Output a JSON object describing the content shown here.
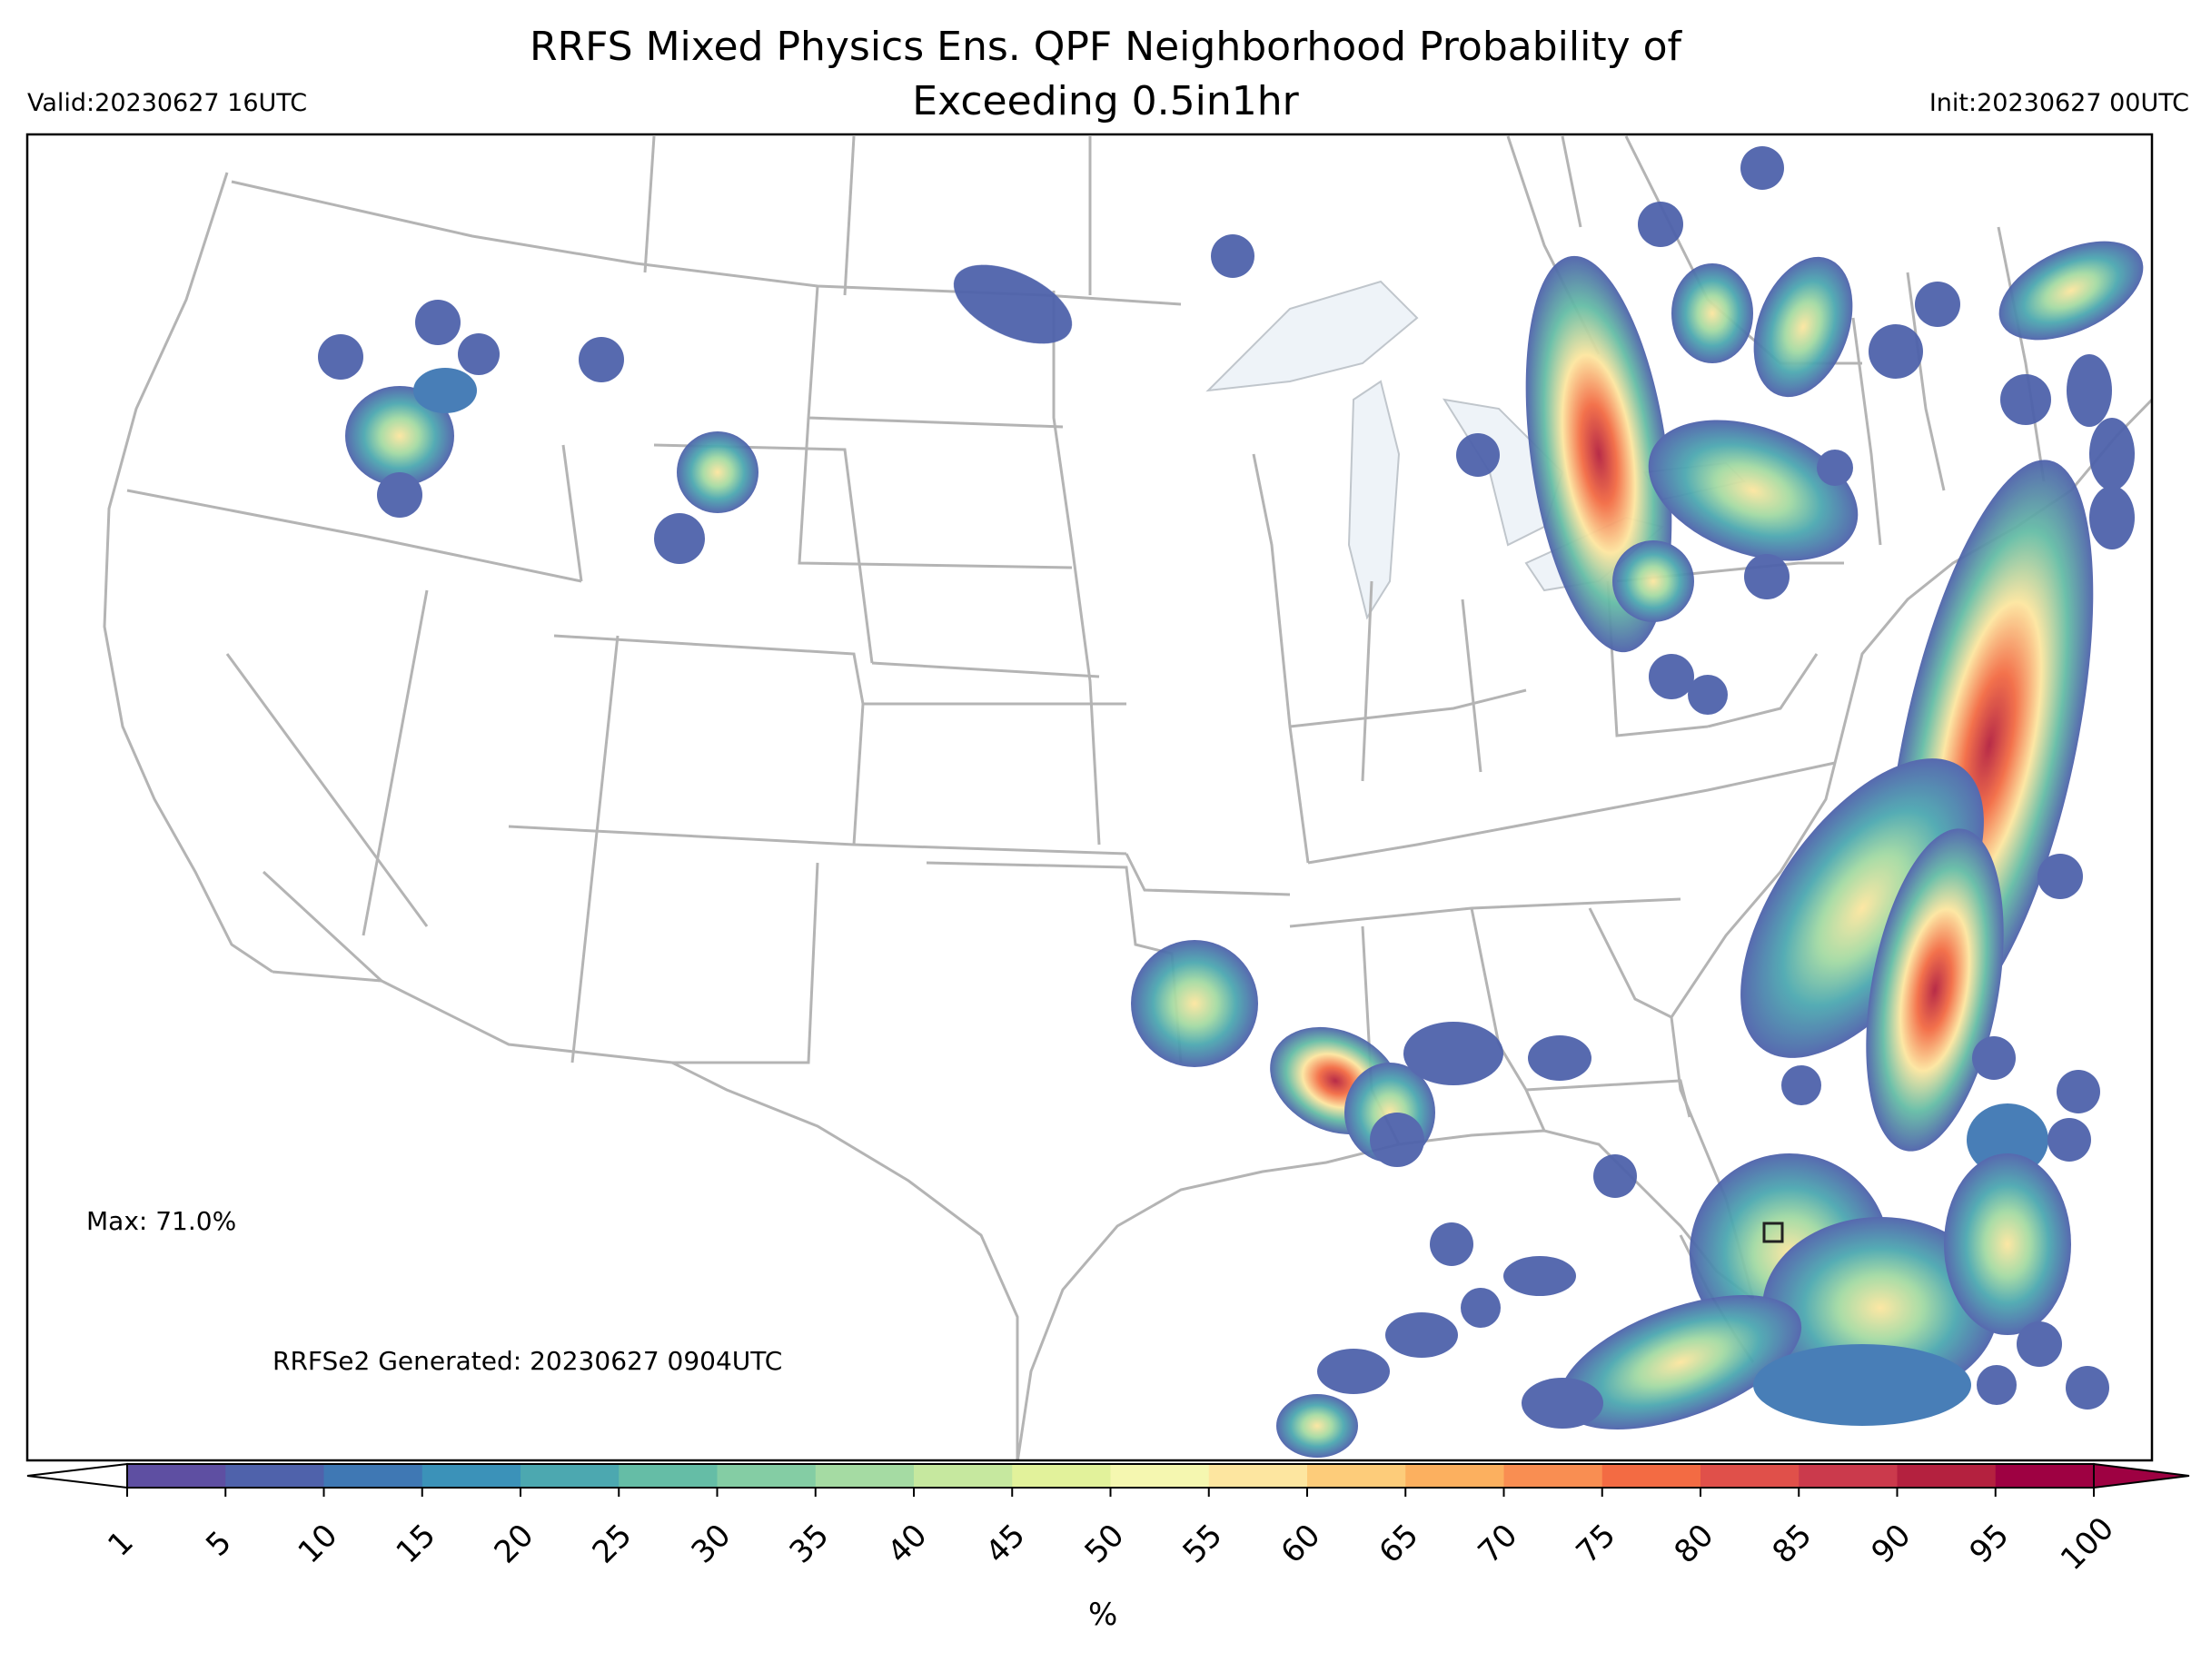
{
  "title_line1": "RRFS Mixed Physics Ens. QPF Neighborhood Probability of",
  "title_line2": "Exceeding 0.5in1hr",
  "valid": "Valid:20230627 16UTC",
  "init": "Init:20230627 00UTC",
  "max_label": "Max: 71.0%",
  "generated": "RRFSe2 Generated: 20230627 0904UTC",
  "colorbar": {
    "ticks": [
      "1",
      "5",
      "10",
      "15",
      "20",
      "25",
      "30",
      "35",
      "40",
      "45",
      "50",
      "55",
      "60",
      "65",
      "70",
      "75",
      "80",
      "85",
      "90",
      "95",
      "100"
    ],
    "unit": "%",
    "colors": [
      "#5e4fa2",
      "#4f62ab",
      "#3f78b4",
      "#3b92b9",
      "#4ca8b0",
      "#65bda6",
      "#84cda4",
      "#a5dba3",
      "#c6e89f",
      "#e2f29b",
      "#f5f7b0",
      "#fde6a0",
      "#fdcc7a",
      "#fcb05f",
      "#f98e52",
      "#f36b43",
      "#e0504a",
      "#cb3a4c",
      "#b4213f",
      "#9e0142"
    ]
  }
}
